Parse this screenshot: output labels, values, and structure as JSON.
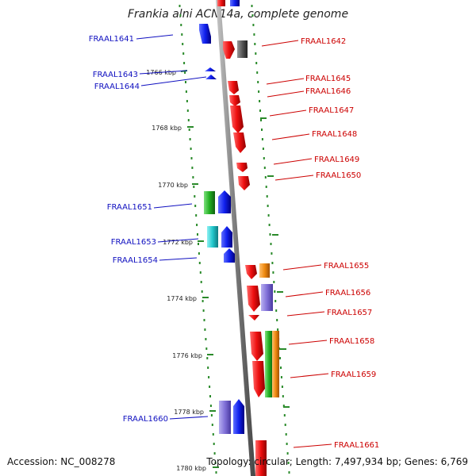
{
  "title": "Frankia alni ACN14a, complete genome",
  "footer": {
    "accession": "Accession: NC_008278",
    "topology": "Topology: circular; Length: 7,497,934 bp; Genes: 6,769"
  },
  "colors": {
    "backbone": "#8a8a8a",
    "tick": "#2a8a2a",
    "left_label": "#1010c0",
    "right_label": "#cc0000",
    "blue": "#1020ee",
    "red": "#ee1010",
    "gray": "#555555",
    "green": "#22b022",
    "cyan": "#22c8cc",
    "orange": "#f08a10",
    "purple": "#8070d8"
  },
  "kbp_labels": [
    "1766 kbp",
    "1768 kbp",
    "1770 kbp",
    "1772 kbp",
    "1774 kbp",
    "1776 kbp",
    "1778 kbp",
    "1780 kbp"
  ],
  "genes_left": [
    "FRAAL1641",
    "FRAAL1643",
    "FRAAL1644",
    "FRAAL1651",
    "FRAAL1653",
    "FRAAL1654",
    "FRAAL1660"
  ],
  "genes_right": [
    "FRAAL1642",
    "FRAAL1645",
    "FRAAL1646",
    "FRAAL1647",
    "FRAAL1648",
    "FRAAL1649",
    "FRAAL1650",
    "FRAAL1655",
    "FRAAL1656",
    "FRAAL1657",
    "FRAAL1658",
    "FRAAL1659",
    "FRAAL1661"
  ]
}
